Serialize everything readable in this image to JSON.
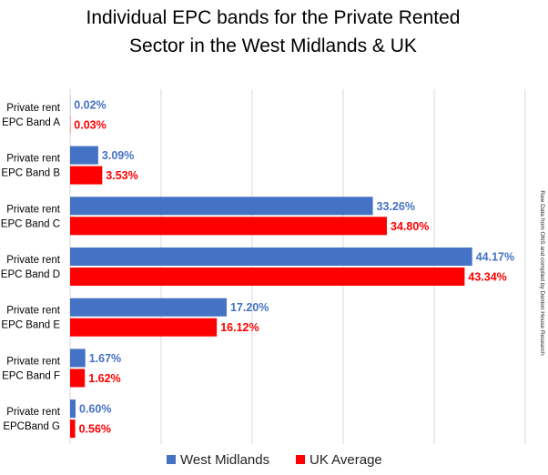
{
  "chart_data": {
    "type": "bar",
    "orientation": "horizontal",
    "title_lines": [
      "Individual EPC bands for the Private Rented",
      "Sector in the West Midlands & UK"
    ],
    "categories": [
      [
        "Private rent",
        "EPC Band A"
      ],
      [
        "Private rent",
        "EPC Band B"
      ],
      [
        "Private rent",
        "EPC Band C"
      ],
      [
        "Private rent",
        "EPC Band D"
      ],
      [
        "Private rent",
        "EPC Band E"
      ],
      [
        "Private rent",
        "EPC Band F"
      ],
      [
        "Private rent",
        "EPCBand G"
      ]
    ],
    "series": [
      {
        "name": "West Midlands",
        "color": "#4472C4",
        "values": [
          0.02,
          3.09,
          33.26,
          44.17,
          17.2,
          1.67,
          0.6
        ],
        "labels": [
          "0.02%",
          "3.09%",
          "33.26%",
          "44.17%",
          "17.20%",
          "1.67%",
          "0.60%"
        ]
      },
      {
        "name": "UK Average",
        "color": "#FF0000",
        "values": [
          0.03,
          3.53,
          34.8,
          43.34,
          16.12,
          1.62,
          0.56
        ],
        "labels": [
          "0.03%",
          "3.53%",
          "34.80%",
          "43.34%",
          "16.12%",
          "1.62%",
          "0.56%"
        ]
      }
    ],
    "xlim": [
      0,
      50
    ],
    "grid": "vertical",
    "legend_position": "bottom",
    "source_note": "Raw Data from ONS and compiled by Denton House Research"
  }
}
